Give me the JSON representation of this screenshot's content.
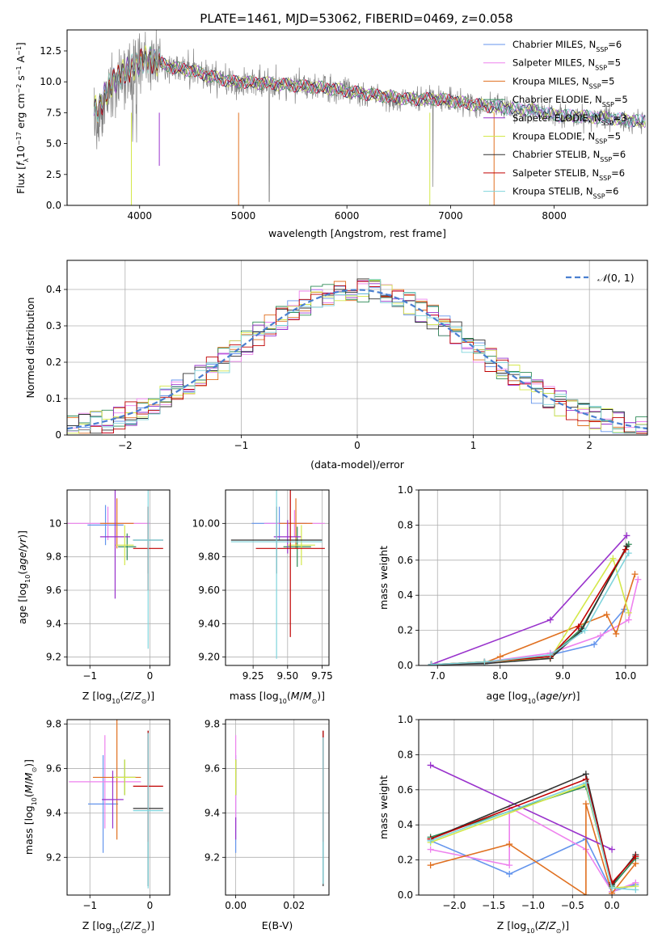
{
  "figure": {
    "title": "PLATE=1461, MJD=53062, FIBERID=0469, z=0.058"
  },
  "chart_data": [
    {
      "id": "spectrum",
      "type": "line",
      "xlabel": "wavelength [Angstrom, rest frame]",
      "ylabel": "Flux [f_λ 10^-17 erg cm^-2 s^-1 A^-1]",
      "xlim": [
        3300,
        8900
      ],
      "ylim": [
        0,
        14.2
      ],
      "xticks": [
        4000,
        5000,
        6000,
        7000,
        8000
      ],
      "yticks": [
        0.0,
        2.5,
        5.0,
        7.5,
        10.0,
        12.5
      ],
      "grid": false,
      "legend_position": "right",
      "data_color": "#808080",
      "data_extent": [
        3560,
        8880
      ],
      "legend": [
        {
          "label": "Chabrier MILES, N_SSP=6",
          "color": "#6495ed"
        },
        {
          "label": "Salpeter MILES, N_SSP=5",
          "color": "#ee82ee"
        },
        {
          "label": "Kroupa MILES, N_SSP=5",
          "color": "#e07020"
        },
        {
          "label": "Chabrier ELODIE, N_SSP=5",
          "color": "#2e8b57"
        },
        {
          "label": "Salpeter ELODIE, N_SSP=3",
          "color": "#9932cc"
        },
        {
          "label": "Kroupa ELODIE, N_SSP=5",
          "color": "#d4e84a"
        },
        {
          "label": "Chabrier STELIB, N_SSP=6",
          "color": "#303030"
        },
        {
          "label": "Salpeter STELIB, N_SSP=6",
          "color": "#c00000"
        },
        {
          "label": "Kroupa STELIB, N_SSP=6",
          "color": "#7fd4dc"
        }
      ],
      "continuum": [
        [
          3600,
          7.8
        ],
        [
          3700,
          9.5
        ],
        [
          3800,
          10.5
        ],
        [
          3900,
          11.0
        ],
        [
          4000,
          11.6
        ],
        [
          4100,
          11.8
        ],
        [
          4300,
          11.2
        ],
        [
          4500,
          10.9
        ],
        [
          4700,
          10.4
        ],
        [
          4900,
          10.0
        ],
        [
          5200,
          9.9
        ],
        [
          5500,
          9.7
        ],
        [
          5800,
          9.5
        ],
        [
          6200,
          9.0
        ],
        [
          6600,
          8.6
        ],
        [
          6900,
          8.6
        ],
        [
          7200,
          8.2
        ],
        [
          7500,
          7.9
        ],
        [
          7800,
          7.7
        ],
        [
          8000,
          7.3
        ],
        [
          8300,
          7.2
        ],
        [
          8600,
          7.0
        ],
        [
          8850,
          6.8
        ]
      ]
    },
    {
      "id": "residuals",
      "type": "step",
      "xlabel": "(data-model)/error",
      "ylabel": "Normed distribution",
      "xlim": [
        -2.5,
        2.5
      ],
      "ylim": [
        0,
        0.48
      ],
      "xticks": [
        -2,
        -1,
        0,
        1,
        2
      ],
      "yticks": [
        0.0,
        0.1,
        0.2,
        0.3,
        0.4
      ],
      "grid": true,
      "legend_position": "upper right",
      "legend": [
        {
          "label": "N(0,1)",
          "color": "#4a7fd0",
          "style": "dashed"
        }
      ],
      "bin_width": 0.1
    },
    {
      "id": "age-vs-Z",
      "type": "errorbar",
      "xlabel": "Z [log10(Z/Z⊙)]",
      "ylabel": "age [log10(age/yr)]",
      "xlim": [
        -1.38,
        0.33
      ],
      "ylim": [
        9.15,
        10.2
      ],
      "xticks": [
        -1,
        0
      ],
      "yticks": [
        9.2,
        9.4,
        9.6,
        9.8,
        10.0
      ],
      "grid": true,
      "points": [
        {
          "color": "#6495ed",
          "x": -0.74,
          "xerr": 0.3,
          "y": 9.99,
          "yerr": 0.12
        },
        {
          "color": "#ee82ee",
          "x": -0.7,
          "xerr": 0.7,
          "y": 10.0,
          "yerr": 0.1
        },
        {
          "color": "#e07020",
          "x": -0.55,
          "xerr": 0.28,
          "y": 10.0,
          "yerr": 0.15
        },
        {
          "color": "#2e8b57",
          "x": -0.38,
          "xerr": 0.15,
          "y": 9.86,
          "yerr": 0.08
        },
        {
          "color": "#9932cc",
          "x": -0.58,
          "xerr": 0.25,
          "y": 9.92,
          "yerr": 0.37
        },
        {
          "color": "#d4e84a",
          "x": -0.42,
          "xerr": 0.15,
          "y": 9.87,
          "yerr": 0.12
        },
        {
          "color": "#303030",
          "x": -0.03,
          "xerr": 0.25,
          "y": 9.9,
          "yerr": 0.2
        },
        {
          "color": "#c00000",
          "x": -0.03,
          "xerr": 0.25,
          "y": 9.85,
          "yerr": 0.25
        },
        {
          "color": "#7fd4dc",
          "x": -0.03,
          "xerr": 0.25,
          "y": 9.9,
          "yerr": 0.65
        }
      ]
    },
    {
      "id": "age-vs-mass",
      "type": "errorbar",
      "xlabel": "mass [log10(M/M⊙)]",
      "ylabel": "",
      "xlim": [
        9.05,
        9.8
      ],
      "ylim": [
        9.15,
        10.2
      ],
      "xticks": [
        9.25,
        9.5,
        9.75
      ],
      "yticks": [
        9.2,
        9.4,
        9.6,
        9.8,
        10.0
      ],
      "grid": true,
      "points": [
        {
          "color": "#6495ed",
          "x": 9.44,
          "xerr": 0.2,
          "y": 10.0,
          "yerr": 0.1
        },
        {
          "color": "#ee82ee",
          "x": 9.55,
          "xerr": 0.22,
          "y": 10.0,
          "yerr": 0.08
        },
        {
          "color": "#e07020",
          "x": 9.56,
          "xerr": 0.12,
          "y": 10.0,
          "yerr": 0.15
        },
        {
          "color": "#2e8b57",
          "x": 9.57,
          "xerr": 0.1,
          "y": 9.86,
          "yerr": 0.12
        },
        {
          "color": "#9932cc",
          "x": 9.5,
          "xerr": 0.1,
          "y": 9.92,
          "yerr": 0.1
        },
        {
          "color": "#d4e84a",
          "x": 9.6,
          "xerr": 0.1,
          "y": 9.87,
          "yerr": 0.12
        },
        {
          "color": "#303030",
          "x": 9.42,
          "xerr": 0.33,
          "y": 9.9,
          "yerr": 0.2
        },
        {
          "color": "#c00000",
          "x": 9.52,
          "xerr": 0.25,
          "y": 9.85,
          "yerr": 0.53
        },
        {
          "color": "#7fd4dc",
          "x": 9.42,
          "xerr": 0.33,
          "y": 9.89,
          "yerr": 0.7
        }
      ]
    },
    {
      "id": "weight-vs-age",
      "type": "line",
      "xlabel": "age [log10(age/yr)]",
      "ylabel": "mass weight",
      "xlim": [
        6.7,
        10.35
      ],
      "ylim": [
        0,
        1.0
      ],
      "xticks": [
        7,
        8,
        9,
        10
      ],
      "yticks": [
        0.0,
        0.2,
        0.4,
        0.6,
        0.8,
        1.0
      ],
      "grid": true,
      "series": [
        {
          "color": "#6495ed",
          "x": [
            6.9,
            7.75,
            8.8,
            9.5,
            9.98
          ],
          "y": [
            0.005,
            0.015,
            0.06,
            0.12,
            0.32
          ]
        },
        {
          "color": "#ee82ee",
          "x": [
            7.75,
            8.8,
            9.6,
            10.05,
            10.2
          ],
          "y": [
            0.02,
            0.07,
            0.17,
            0.26,
            0.49
          ]
        },
        {
          "color": "#e07020",
          "x": [
            7.75,
            8.0,
            9.7,
            9.85,
            10.15
          ],
          "y": [
            0.015,
            0.05,
            0.29,
            0.18,
            0.52
          ]
        },
        {
          "color": "#2e8b57",
          "x": [
            6.9,
            7.75,
            8.8,
            9.3,
            10.05
          ],
          "y": [
            0.005,
            0.02,
            0.05,
            0.21,
            0.69
          ]
        },
        {
          "color": "#9932cc",
          "x": [
            6.9,
            8.8,
            10.02
          ],
          "y": [
            0.005,
            0.26,
            0.74
          ]
        },
        {
          "color": "#d4e84a",
          "x": [
            6.9,
            8.8,
            9.8,
            10.05
          ],
          "y": [
            0.005,
            0.04,
            0.61,
            0.3
          ]
        },
        {
          "color": "#303030",
          "x": [
            6.9,
            7.75,
            8.8,
            9.3,
            10.02
          ],
          "y": [
            0.005,
            0.01,
            0.04,
            0.2,
            0.68
          ]
        },
        {
          "color": "#c00000",
          "x": [
            6.9,
            7.75,
            8.8,
            9.25,
            10.0
          ],
          "y": [
            0.005,
            0.02,
            0.05,
            0.22,
            0.66
          ]
        },
        {
          "color": "#7fd4dc",
          "x": [
            6.9,
            7.75,
            8.8,
            9.35,
            10.05
          ],
          "y": [
            0.005,
            0.02,
            0.06,
            0.2,
            0.64
          ]
        }
      ]
    },
    {
      "id": "mass-vs-Z",
      "type": "errorbar",
      "xlabel": "Z [log10(Z/Z⊙)]",
      "ylabel": "mass [log10(M/M⊙)]",
      "xlim": [
        -1.38,
        0.33
      ],
      "ylim": [
        9.03,
        9.82
      ],
      "xticks": [
        -1,
        0
      ],
      "yticks": [
        9.2,
        9.4,
        9.6,
        9.8
      ],
      "grid": true,
      "points": [
        {
          "color": "#6495ed",
          "x": -0.78,
          "xerr": 0.25,
          "y": 9.44,
          "yerr": 0.22
        },
        {
          "color": "#ee82ee",
          "x": -0.75,
          "xerr": 0.6,
          "y": 9.54,
          "yerr": 0.21
        },
        {
          "color": "#e07020",
          "x": -0.55,
          "xerr": 0.4,
          "y": 9.56,
          "yerr": 0.28
        },
        {
          "color": "#2e8b57",
          "x": -0.42,
          "xerr": 0.18,
          "y": 9.56,
          "yerr": 0.08
        },
        {
          "color": "#9932cc",
          "x": -0.62,
          "xerr": 0.18,
          "y": 9.46,
          "yerr": 0.13
        },
        {
          "color": "#d4e84a",
          "x": -0.42,
          "xerr": 0.18,
          "y": 9.56,
          "yerr": 0.08
        },
        {
          "color": "#303030",
          "x": -0.03,
          "xerr": 0.25,
          "y": 9.42,
          "yerr": 0.35
        },
        {
          "color": "#c00000",
          "x": -0.03,
          "xerr": 0.25,
          "y": 9.52,
          "yerr": 0.25
        },
        {
          "color": "#7fd4dc",
          "x": -0.03,
          "xerr": 0.25,
          "y": 9.41,
          "yerr": 0.35
        }
      ]
    },
    {
      "id": "mass-vs-ebv",
      "type": "errorbar",
      "xlabel": "E(B-V)",
      "ylabel": "",
      "xlim": [
        -0.0035,
        0.032
      ],
      "ylim": [
        9.03,
        9.82
      ],
      "xticks": [
        0.0,
        0.02
      ],
      "yticks": [
        9.2,
        9.4,
        9.6,
        9.8
      ],
      "grid": true,
      "points": [
        {
          "color": "#6495ed",
          "x": 0.0,
          "xerr": 0,
          "y": 9.44,
          "yerr": 0.22
        },
        {
          "color": "#ee82ee",
          "x": 0.0,
          "xerr": 0,
          "y": 9.54,
          "yerr": 0.21
        },
        {
          "color": "#e07020",
          "x": 0.0,
          "xerr": 0,
          "y": 9.56,
          "yerr": 0.08
        },
        {
          "color": "#2e8b57",
          "x": 0.0,
          "xerr": 0,
          "y": 9.56,
          "yerr": 0.08
        },
        {
          "color": "#9932cc",
          "x": 0.0,
          "xerr": 0,
          "y": 9.33,
          "yerr": 0.05
        },
        {
          "color": "#d4e84a",
          "x": 0.0,
          "xerr": 0,
          "y": 9.56,
          "yerr": 0.08
        },
        {
          "color": "#303030",
          "x": 0.03,
          "xerr": 0,
          "y": 9.42,
          "yerr": 0.35
        },
        {
          "color": "#c00000",
          "x": 0.03,
          "xerr": 0,
          "y": 9.52,
          "yerr": 0.25
        },
        {
          "color": "#7fd4dc",
          "x": 0.03,
          "xerr": 0,
          "y": 9.41,
          "yerr": 0.33
        }
      ]
    },
    {
      "id": "weight-vs-Z",
      "type": "line",
      "xlabel": "Z [log10(Z/Z⊙)]",
      "ylabel": "mass weight",
      "xlim": [
        -2.45,
        0.45
      ],
      "ylim": [
        0,
        1.0
      ],
      "xticks": [
        -2.0,
        -1.5,
        -1.0,
        -0.5,
        0.0
      ],
      "yticks": [
        0.0,
        0.2,
        0.4,
        0.6,
        0.8,
        1.0
      ],
      "grid": true,
      "series": [
        {
          "color": "#6495ed",
          "x": [
            -2.3,
            -1.3,
            -0.33,
            0.0,
            0.3
          ],
          "y": [
            0.31,
            0.12,
            0.32,
            0.02,
            0.06
          ]
        },
        {
          "color": "#ee82ee",
          "x": [
            -2.3,
            -1.3,
            -1.3,
            -0.33,
            0.0,
            0.3
          ],
          "y": [
            0.26,
            0.17,
            0.5,
            0.26,
            0.02,
            0.07
          ]
        },
        {
          "color": "#e07020",
          "x": [
            -2.3,
            -1.3,
            -0.33,
            -0.33,
            0.0,
            0.3
          ],
          "y": [
            0.17,
            0.29,
            0.0,
            0.52,
            0.01,
            0.18
          ]
        },
        {
          "color": "#2e8b57",
          "x": [
            -2.3,
            -0.33,
            0.0,
            0.3
          ],
          "y": [
            0.33,
            0.62,
            0.05,
            0.21
          ]
        },
        {
          "color": "#9932cc",
          "x": [
            -2.3,
            0.0
          ],
          "y": [
            0.74,
            0.26
          ]
        },
        {
          "color": "#d4e84a",
          "x": [
            -2.3,
            -0.33,
            0.0,
            0.3
          ],
          "y": [
            0.3,
            0.63,
            0.04,
            0.05
          ]
        },
        {
          "color": "#303030",
          "x": [
            -2.3,
            -0.33,
            0.0,
            0.3
          ],
          "y": [
            0.32,
            0.69,
            0.06,
            0.23
          ]
        },
        {
          "color": "#c00000",
          "x": [
            -2.3,
            -0.33,
            0.0,
            0.3
          ],
          "y": [
            0.32,
            0.66,
            0.07,
            0.22
          ]
        },
        {
          "color": "#7fd4dc",
          "x": [
            -2.3,
            -0.33,
            0.0,
            0.3
          ],
          "y": [
            0.31,
            0.64,
            0.04,
            0.03
          ]
        }
      ]
    }
  ]
}
